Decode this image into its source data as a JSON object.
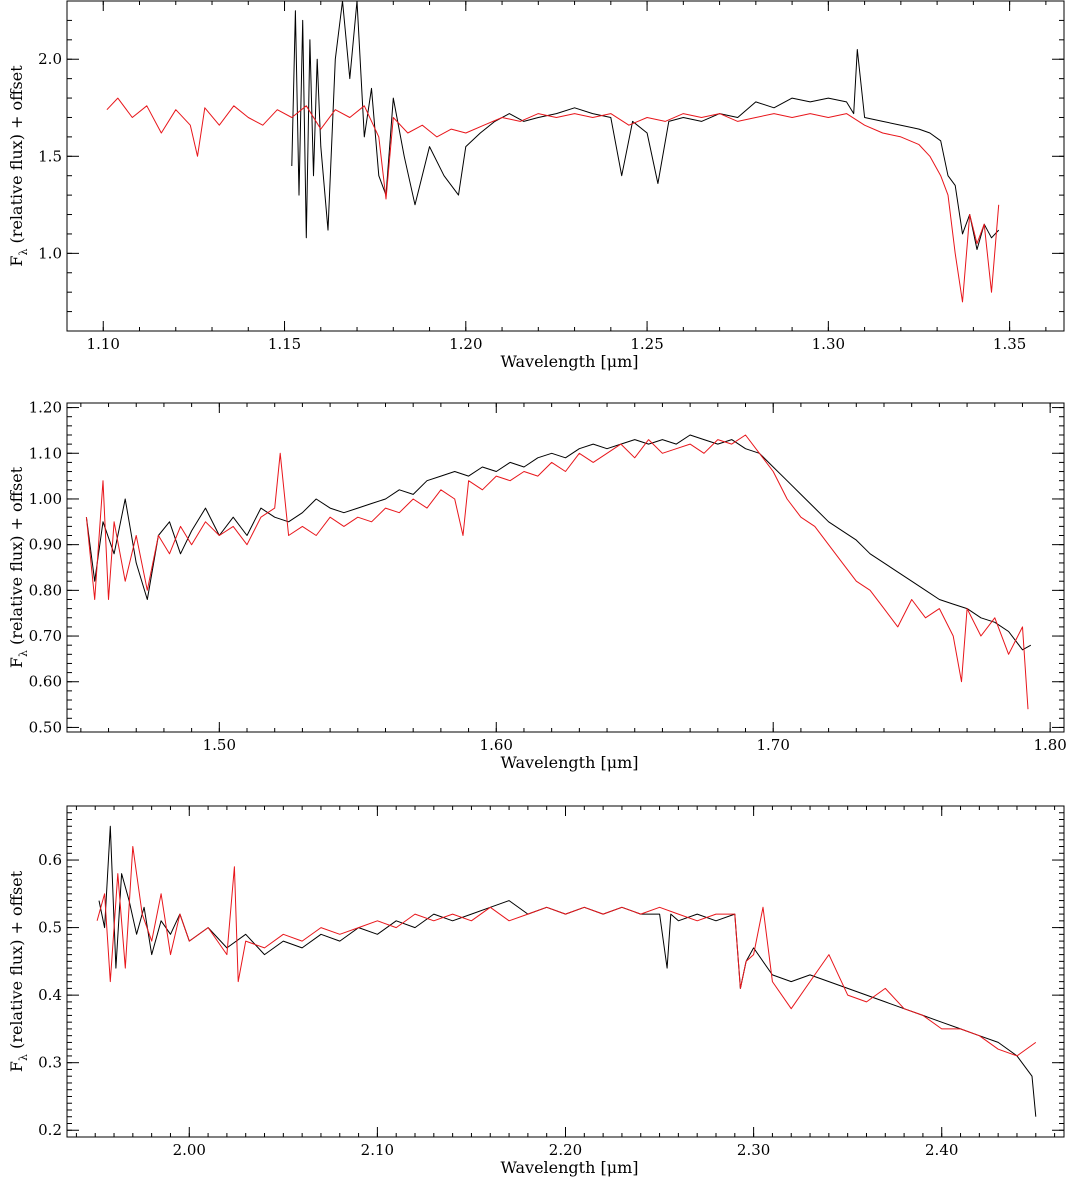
{
  "chart_data": [
    {
      "type": "line",
      "xlabel": "Wavelength [μm]",
      "ylabel": "Fλ (relative flux) + offset",
      "ylabel_main": "F",
      "ylabel_sub": "λ",
      "ylabel_rest": " (relative flux) + offset",
      "xlim": [
        1.09,
        1.365
      ],
      "ylim": [
        0.6,
        2.3
      ],
      "xticks": [
        1.1,
        1.15,
        1.2,
        1.25,
        1.3,
        1.35
      ],
      "xtick_labels": [
        "1.10",
        "1.15",
        "1.20",
        "1.25",
        "1.30",
        "1.35"
      ],
      "x_minor_step": 0.01,
      "yticks": [
        1.0,
        1.5,
        2.0
      ],
      "ytick_labels": [
        "1.0",
        "1.5",
        "2.0"
      ],
      "y_minor_step": 0.1,
      "grid": false,
      "series": [
        {
          "color": "#000000",
          "x": [
            1.152,
            1.153,
            1.154,
            1.155,
            1.156,
            1.157,
            1.158,
            1.159,
            1.16,
            1.162,
            1.164,
            1.166,
            1.168,
            1.17,
            1.172,
            1.174,
            1.176,
            1.178,
            1.18,
            1.183,
            1.186,
            1.19,
            1.194,
            1.198,
            1.2,
            1.204,
            1.208,
            1.212,
            1.216,
            1.22,
            1.225,
            1.23,
            1.235,
            1.24,
            1.243,
            1.246,
            1.25,
            1.253,
            1.256,
            1.26,
            1.265,
            1.27,
            1.275,
            1.28,
            1.285,
            1.29,
            1.295,
            1.3,
            1.305,
            1.307,
            1.308,
            1.31,
            1.315,
            1.32,
            1.325,
            1.328,
            1.331,
            1.333,
            1.335,
            1.337,
            1.339,
            1.341,
            1.343,
            1.345,
            1.347
          ],
          "y": [
            1.45,
            2.25,
            1.3,
            2.2,
            1.08,
            2.1,
            1.4,
            2.0,
            1.55,
            1.12,
            2.0,
            2.3,
            1.9,
            2.3,
            1.6,
            1.85,
            1.4,
            1.3,
            1.8,
            1.5,
            1.25,
            1.55,
            1.4,
            1.3,
            1.55,
            1.62,
            1.68,
            1.72,
            1.68,
            1.7,
            1.72,
            1.75,
            1.72,
            1.7,
            1.4,
            1.68,
            1.62,
            1.36,
            1.68,
            1.7,
            1.68,
            1.72,
            1.7,
            1.78,
            1.75,
            1.8,
            1.78,
            1.8,
            1.78,
            1.72,
            2.05,
            1.7,
            1.68,
            1.66,
            1.64,
            1.62,
            1.58,
            1.4,
            1.35,
            1.1,
            1.2,
            1.02,
            1.15,
            1.08,
            1.12
          ]
        },
        {
          "color": "#e8161b",
          "x": [
            1.101,
            1.104,
            1.108,
            1.112,
            1.116,
            1.12,
            1.124,
            1.126,
            1.128,
            1.132,
            1.136,
            1.14,
            1.144,
            1.148,
            1.152,
            1.156,
            1.16,
            1.164,
            1.168,
            1.172,
            1.176,
            1.178,
            1.18,
            1.184,
            1.188,
            1.192,
            1.196,
            1.2,
            1.205,
            1.21,
            1.215,
            1.22,
            1.225,
            1.23,
            1.235,
            1.24,
            1.245,
            1.25,
            1.255,
            1.26,
            1.265,
            1.27,
            1.275,
            1.28,
            1.285,
            1.29,
            1.295,
            1.3,
            1.305,
            1.31,
            1.315,
            1.32,
            1.325,
            1.328,
            1.331,
            1.333,
            1.335,
            1.337,
            1.339,
            1.341,
            1.343,
            1.345,
            1.347
          ],
          "y": [
            1.74,
            1.8,
            1.7,
            1.76,
            1.62,
            1.74,
            1.66,
            1.5,
            1.75,
            1.66,
            1.76,
            1.7,
            1.66,
            1.74,
            1.7,
            1.76,
            1.64,
            1.74,
            1.7,
            1.76,
            1.6,
            1.28,
            1.7,
            1.62,
            1.66,
            1.6,
            1.64,
            1.62,
            1.66,
            1.7,
            1.68,
            1.72,
            1.7,
            1.72,
            1.7,
            1.72,
            1.66,
            1.7,
            1.68,
            1.72,
            1.7,
            1.72,
            1.68,
            1.7,
            1.72,
            1.7,
            1.72,
            1.7,
            1.72,
            1.66,
            1.62,
            1.6,
            1.56,
            1.5,
            1.4,
            1.3,
            1.0,
            0.75,
            1.2,
            1.05,
            1.15,
            0.8,
            1.25
          ]
        }
      ]
    },
    {
      "type": "line",
      "xlabel": "Wavelength [μm]",
      "ylabel": "Fλ (relative flux) + offset",
      "ylabel_main": "F",
      "ylabel_sub": "λ",
      "ylabel_rest": " (relative flux) + offset",
      "xlim": [
        1.445,
        1.805
      ],
      "ylim": [
        0.49,
        1.21
      ],
      "xticks": [
        1.5,
        1.6,
        1.7,
        1.8
      ],
      "xtick_labels": [
        "1.50",
        "1.60",
        "1.70",
        "1.80"
      ],
      "x_minor_step": 0.01,
      "yticks": [
        0.5,
        0.6,
        0.7,
        0.8,
        0.9,
        1.0,
        1.1,
        1.2
      ],
      "ytick_labels": [
        "0.50",
        "0.60",
        "0.70",
        "0.80",
        "0.90",
        "1.00",
        "1.10",
        "1.20"
      ],
      "y_minor_step": 0.02,
      "grid": false,
      "series": [
        {
          "color": "#000000",
          "x": [
            1.452,
            1.455,
            1.458,
            1.462,
            1.466,
            1.47,
            1.474,
            1.478,
            1.482,
            1.486,
            1.49,
            1.495,
            1.5,
            1.505,
            1.51,
            1.515,
            1.52,
            1.525,
            1.53,
            1.535,
            1.54,
            1.545,
            1.55,
            1.555,
            1.56,
            1.565,
            1.57,
            1.575,
            1.58,
            1.585,
            1.59,
            1.595,
            1.6,
            1.605,
            1.61,
            1.615,
            1.62,
            1.625,
            1.63,
            1.635,
            1.64,
            1.645,
            1.65,
            1.655,
            1.66,
            1.665,
            1.67,
            1.675,
            1.68,
            1.685,
            1.69,
            1.695,
            1.7,
            1.705,
            1.71,
            1.715,
            1.72,
            1.725,
            1.73,
            1.735,
            1.74,
            1.745,
            1.75,
            1.755,
            1.76,
            1.765,
            1.77,
            1.775,
            1.78,
            1.785,
            1.79,
            1.793
          ],
          "y": [
            0.96,
            0.82,
            0.95,
            0.88,
            1.0,
            0.86,
            0.78,
            0.92,
            0.95,
            0.88,
            0.93,
            0.98,
            0.92,
            0.96,
            0.92,
            0.98,
            0.96,
            0.95,
            0.97,
            1.0,
            0.98,
            0.97,
            0.98,
            0.99,
            1.0,
            1.02,
            1.01,
            1.04,
            1.05,
            1.06,
            1.05,
            1.07,
            1.06,
            1.08,
            1.07,
            1.09,
            1.1,
            1.09,
            1.11,
            1.12,
            1.11,
            1.12,
            1.13,
            1.12,
            1.13,
            1.12,
            1.14,
            1.13,
            1.12,
            1.13,
            1.11,
            1.1,
            1.07,
            1.04,
            1.01,
            0.98,
            0.95,
            0.93,
            0.91,
            0.88,
            0.86,
            0.84,
            0.82,
            0.8,
            0.78,
            0.77,
            0.76,
            0.74,
            0.73,
            0.71,
            0.67,
            0.68
          ]
        },
        {
          "color": "#e8161b",
          "x": [
            1.452,
            1.455,
            1.458,
            1.46,
            1.462,
            1.466,
            1.47,
            1.474,
            1.478,
            1.482,
            1.486,
            1.49,
            1.495,
            1.5,
            1.505,
            1.51,
            1.515,
            1.52,
            1.522,
            1.525,
            1.53,
            1.535,
            1.54,
            1.545,
            1.55,
            1.555,
            1.56,
            1.565,
            1.57,
            1.575,
            1.58,
            1.585,
            1.588,
            1.59,
            1.595,
            1.6,
            1.605,
            1.61,
            1.615,
            1.62,
            1.625,
            1.63,
            1.635,
            1.64,
            1.645,
            1.65,
            1.655,
            1.66,
            1.665,
            1.67,
            1.675,
            1.68,
            1.685,
            1.69,
            1.695,
            1.7,
            1.705,
            1.71,
            1.715,
            1.72,
            1.725,
            1.73,
            1.735,
            1.74,
            1.745,
            1.75,
            1.755,
            1.76,
            1.765,
            1.768,
            1.77,
            1.775,
            1.78,
            1.785,
            1.79,
            1.792
          ],
          "y": [
            0.96,
            0.78,
            1.04,
            0.78,
            0.95,
            0.82,
            0.92,
            0.8,
            0.92,
            0.88,
            0.94,
            0.9,
            0.95,
            0.92,
            0.94,
            0.9,
            0.96,
            0.98,
            1.1,
            0.92,
            0.94,
            0.92,
            0.96,
            0.94,
            0.96,
            0.95,
            0.98,
            0.97,
            1.0,
            0.98,
            1.02,
            1.0,
            0.92,
            1.04,
            1.02,
            1.05,
            1.04,
            1.06,
            1.05,
            1.08,
            1.06,
            1.1,
            1.08,
            1.1,
            1.12,
            1.09,
            1.13,
            1.1,
            1.11,
            1.12,
            1.1,
            1.13,
            1.12,
            1.14,
            1.1,
            1.06,
            1.0,
            0.96,
            0.94,
            0.9,
            0.86,
            0.82,
            0.8,
            0.76,
            0.72,
            0.78,
            0.74,
            0.76,
            0.7,
            0.6,
            0.76,
            0.7,
            0.74,
            0.66,
            0.72,
            0.54
          ]
        }
      ]
    },
    {
      "type": "line",
      "xlabel": "Wavelength [μm]",
      "ylabel": "Fλ (relative flux) + offset",
      "ylabel_main": "F",
      "ylabel_sub": "λ",
      "ylabel_rest": " (relative flux) + offset",
      "xlim": [
        1.935,
        2.465
      ],
      "ylim": [
        0.19,
        0.68
      ],
      "xticks": [
        2.0,
        2.1,
        2.2,
        2.3,
        2.4
      ],
      "xtick_labels": [
        "2.00",
        "2.10",
        "2.20",
        "2.30",
        "2.40"
      ],
      "x_minor_step": 0.01,
      "yticks": [
        0.2,
        0.3,
        0.4,
        0.5,
        0.6
      ],
      "ytick_labels": [
        "0.2",
        "0.3",
        "0.4",
        "0.5",
        "0.6"
      ],
      "y_minor_step": 0.01,
      "grid": false,
      "series": [
        {
          "color": "#000000",
          "x": [
            1.952,
            1.955,
            1.958,
            1.961,
            1.964,
            1.968,
            1.972,
            1.976,
            1.98,
            1.985,
            1.99,
            1.995,
            2.0,
            2.01,
            2.02,
            2.03,
            2.04,
            2.05,
            2.06,
            2.07,
            2.08,
            2.09,
            2.1,
            2.11,
            2.12,
            2.13,
            2.14,
            2.15,
            2.16,
            2.17,
            2.18,
            2.19,
            2.2,
            2.21,
            2.22,
            2.23,
            2.24,
            2.25,
            2.254,
            2.256,
            2.26,
            2.27,
            2.28,
            2.29,
            2.293,
            2.296,
            2.3,
            2.31,
            2.32,
            2.33,
            2.34,
            2.35,
            2.36,
            2.37,
            2.38,
            2.39,
            2.4,
            2.41,
            2.42,
            2.43,
            2.44,
            2.448,
            2.45
          ],
          "y": [
            0.54,
            0.5,
            0.65,
            0.44,
            0.58,
            0.54,
            0.49,
            0.53,
            0.46,
            0.51,
            0.49,
            0.52,
            0.48,
            0.5,
            0.47,
            0.49,
            0.46,
            0.48,
            0.47,
            0.49,
            0.48,
            0.5,
            0.49,
            0.51,
            0.5,
            0.52,
            0.51,
            0.52,
            0.53,
            0.54,
            0.52,
            0.53,
            0.52,
            0.53,
            0.52,
            0.53,
            0.52,
            0.52,
            0.44,
            0.52,
            0.51,
            0.52,
            0.51,
            0.52,
            0.41,
            0.45,
            0.47,
            0.43,
            0.42,
            0.43,
            0.42,
            0.41,
            0.4,
            0.39,
            0.38,
            0.37,
            0.36,
            0.35,
            0.34,
            0.33,
            0.31,
            0.28,
            0.22
          ]
        },
        {
          "color": "#e8161b",
          "x": [
            1.951,
            1.955,
            1.958,
            1.962,
            1.966,
            1.97,
            1.975,
            1.98,
            1.985,
            1.99,
            1.995,
            2.0,
            2.01,
            2.02,
            2.024,
            2.026,
            2.03,
            2.04,
            2.05,
            2.06,
            2.07,
            2.08,
            2.09,
            2.1,
            2.11,
            2.12,
            2.13,
            2.14,
            2.15,
            2.16,
            2.17,
            2.18,
            2.19,
            2.2,
            2.21,
            2.22,
            2.23,
            2.24,
            2.25,
            2.26,
            2.27,
            2.28,
            2.29,
            2.293,
            2.296,
            2.3,
            2.305,
            2.31,
            2.32,
            2.33,
            2.34,
            2.35,
            2.36,
            2.37,
            2.38,
            2.39,
            2.4,
            2.41,
            2.42,
            2.43,
            2.44,
            2.45
          ],
          "y": [
            0.51,
            0.55,
            0.42,
            0.58,
            0.44,
            0.62,
            0.52,
            0.48,
            0.55,
            0.46,
            0.52,
            0.48,
            0.5,
            0.46,
            0.59,
            0.42,
            0.48,
            0.47,
            0.49,
            0.48,
            0.5,
            0.49,
            0.5,
            0.51,
            0.5,
            0.52,
            0.51,
            0.52,
            0.51,
            0.53,
            0.51,
            0.52,
            0.53,
            0.52,
            0.53,
            0.52,
            0.53,
            0.52,
            0.53,
            0.52,
            0.51,
            0.52,
            0.52,
            0.41,
            0.45,
            0.46,
            0.53,
            0.42,
            0.38,
            0.42,
            0.46,
            0.4,
            0.39,
            0.41,
            0.38,
            0.37,
            0.35,
            0.35,
            0.34,
            0.32,
            0.31,
            0.33
          ]
        }
      ]
    }
  ]
}
